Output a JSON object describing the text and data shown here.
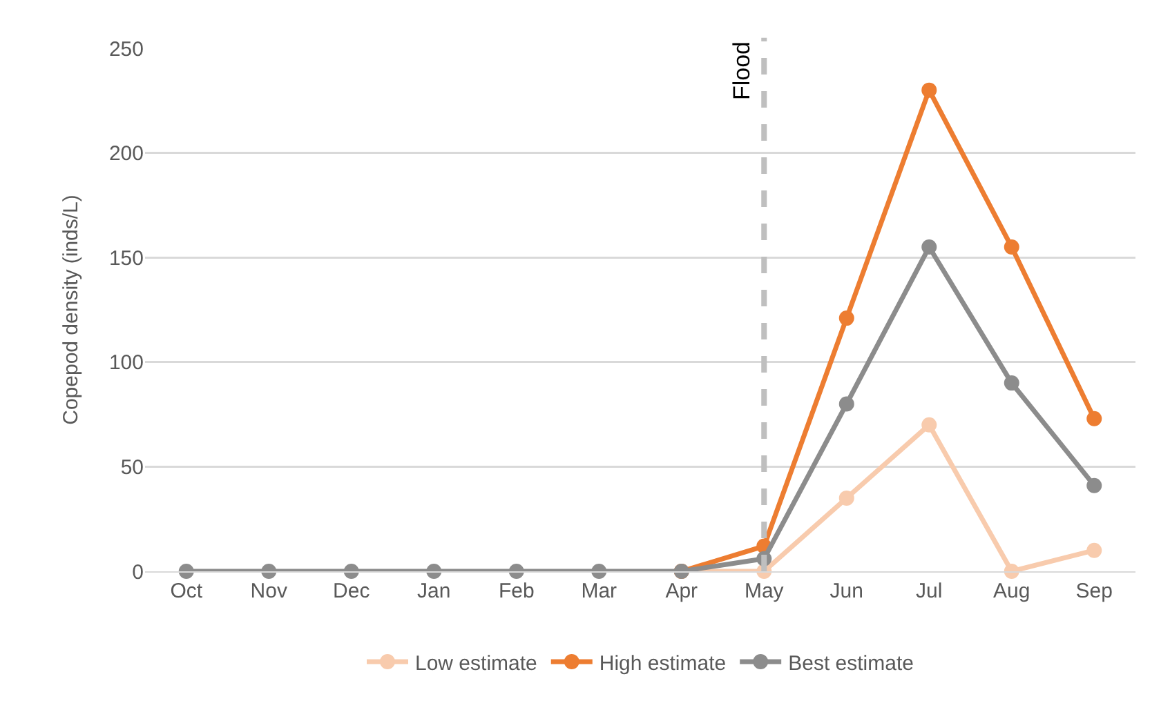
{
  "chart_data": {
    "type": "line",
    "ylabel": "Copepod density (inds/L)",
    "categories": [
      "Oct",
      "Nov",
      "Dec",
      "Jan",
      "Feb",
      "Mar",
      "Apr",
      "May",
      "Jun",
      "Jul",
      "Aug",
      "Sep"
    ],
    "series": [
      {
        "name": "Low estimate",
        "color": "#f8cbad",
        "values": [
          null,
          null,
          null,
          null,
          null,
          null,
          0,
          0,
          35,
          70,
          0,
          10
        ]
      },
      {
        "name": "High estimate",
        "color": "#ed7d31",
        "values": [
          null,
          null,
          null,
          null,
          null,
          null,
          0,
          12,
          121,
          230,
          155,
          73
        ]
      },
      {
        "name": "Best estimate",
        "color": "#8c8c8c",
        "values": [
          0,
          0,
          0,
          0,
          0,
          0,
          0,
          6,
          80,
          155,
          90,
          41
        ]
      }
    ],
    "ylim": [
      0,
      250
    ],
    "yticks": [
      0,
      50,
      100,
      150,
      200,
      250
    ],
    "grid": "y",
    "legend": "bottom",
    "marker": "circle",
    "line_style": "solid",
    "ref_lines": [
      {
        "axis": "x",
        "value": "May",
        "label": "Flood",
        "color": "#bfbfbf",
        "line_style": "dashed"
      }
    ]
  }
}
